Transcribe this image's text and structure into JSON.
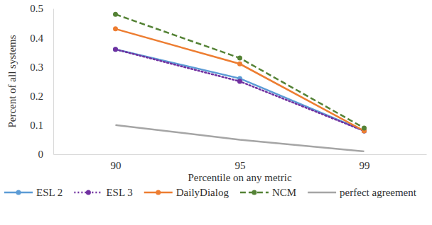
{
  "chart_data": {
    "type": "line",
    "x_label": "Percentile on any metric",
    "y_label": "Percent of all systems",
    "categories": [
      "90",
      "95",
      "99"
    ],
    "ylim": [
      0,
      0.5
    ],
    "yticks": [
      0,
      0.1,
      0.2,
      0.3,
      0.4,
      0.5
    ],
    "grid": false,
    "legend": "bottom",
    "series": [
      {
        "name": "ESL 2",
        "color": "#5b9bd5",
        "marker": "circle",
        "line_style": "solid",
        "values": [
          0.36,
          0.26,
          0.08
        ]
      },
      {
        "name": "ESL 3",
        "color": "#7030a0",
        "marker": "circle",
        "line_style": "dotted",
        "values": [
          0.36,
          0.25,
          0.08
        ]
      },
      {
        "name": "DailyDialog",
        "color": "#ed7d31",
        "marker": "circle",
        "line_style": "solid",
        "values": [
          0.43,
          0.31,
          0.08
        ]
      },
      {
        "name": "NCM",
        "color": "#548235",
        "marker": "circle",
        "line_style": "dashed",
        "values": [
          0.48,
          0.33,
          0.09
        ]
      },
      {
        "name": "perfect agreement",
        "color": "#a5a5a5",
        "marker": "none",
        "line_style": "solid",
        "values": [
          0.1,
          0.05,
          0.01
        ]
      }
    ]
  }
}
